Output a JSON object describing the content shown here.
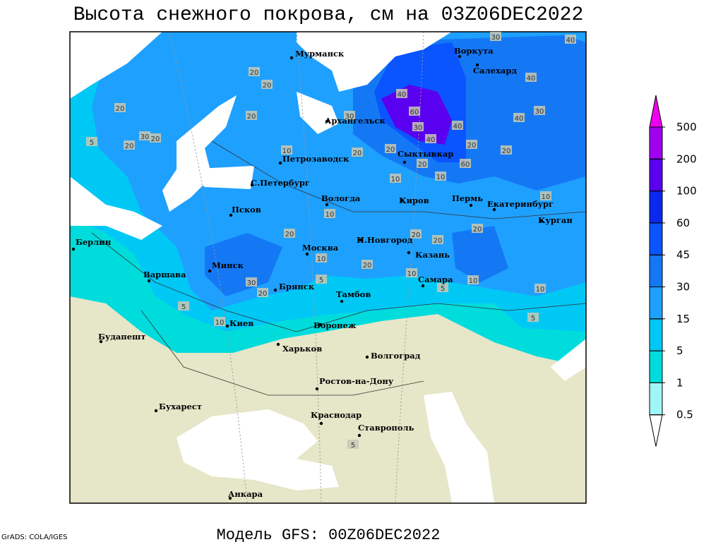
{
  "title": "Высота снежного покрова, см на 03Z06DEC2022",
  "footer": "Модель GFS: 00Z06DEC2022",
  "credit": "GrADS: COLA/IGES",
  "cities": [
    "Мурманск",
    "Воркута",
    "Салехард",
    "Архангельск",
    "Сыктывкар",
    "Петрозаводск",
    "С.Петербург",
    "Вологда",
    "Киров",
    "Пермь",
    "Екатеринбург",
    "Курган",
    "Псков",
    "Н.Новгород",
    "Москва",
    "Казань",
    "Минск",
    "Брянск",
    "Тамбов",
    "Самара",
    "Берлин",
    "Варшава",
    "Киев",
    "Воронеж",
    "Будапешт",
    "Харьков",
    "Волгоград",
    "Ростов-на-Дону",
    "Бухарест",
    "Краснодар",
    "Ставрополь",
    "Анкара"
  ],
  "contour_labels": [
    40,
    30,
    40,
    20,
    20,
    20,
    30,
    20,
    5,
    20,
    20,
    30,
    40,
    60,
    30,
    40,
    40,
    20,
    60,
    20,
    40,
    30,
    10,
    20,
    20,
    20,
    10,
    10,
    10,
    10,
    20,
    20,
    20,
    20,
    10,
    20,
    10,
    10,
    30,
    20,
    5,
    5,
    10,
    5,
    10,
    5,
    5
  ],
  "legend": {
    "levels": [
      0.5,
      1,
      5,
      15,
      30,
      45,
      60,
      100,
      200,
      500
    ],
    "colors": [
      "#ffffff",
      "#a0f5f5",
      "#00dcdc",
      "#00c8f5",
      "#1ea0ff",
      "#1478f5",
      "#0a55ff",
      "#0a28f0",
      "#5a00f0",
      "#a000f0",
      "#f000f0"
    ]
  }
}
